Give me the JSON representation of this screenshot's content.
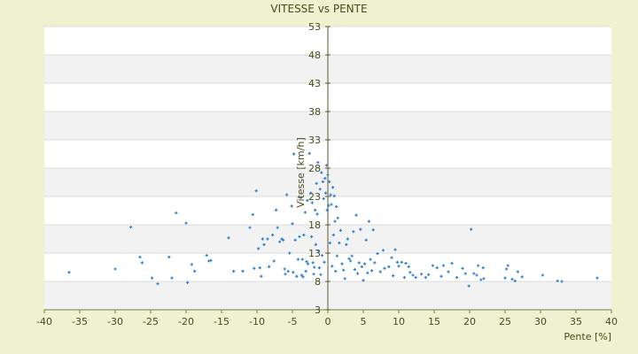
{
  "chart_data": {
    "type": "scatter",
    "title": "VITESSE vs PENTE",
    "xlabel": "Pente [%]",
    "ylabel": "Vitesse [km/h]",
    "xlim": [
      -40,
      40
    ],
    "ylim": [
      3,
      53
    ],
    "xticks": [
      "-40",
      "-35",
      "-30",
      "-25",
      "-20",
      "-15",
      "-10",
      "-5",
      "0",
      "5",
      "10",
      "15",
      "20",
      "25",
      "30",
      "35",
      "40"
    ],
    "yticks": [
      "3",
      "8",
      "13",
      "18",
      "23",
      "28",
      "33",
      "38",
      "43",
      "48",
      "53"
    ],
    "grid": "horizontal bands",
    "legend": "none",
    "marker_color": "#2a7fd4",
    "series": [
      {
        "points": [
          [
            -36.5,
            9.6
          ],
          [
            -30,
            10.2
          ],
          [
            -27.8,
            17.6
          ],
          [
            -26.5,
            12.3
          ],
          [
            -26.2,
            11.3
          ],
          [
            -24.8,
            8.6
          ],
          [
            -24,
            7.6
          ],
          [
            -22.4,
            12.3
          ],
          [
            -22,
            8.6
          ],
          [
            -21.4,
            20.1
          ],
          [
            -20,
            18.3
          ],
          [
            -19.8,
            7.8
          ],
          [
            -19.2,
            11
          ],
          [
            -18.8,
            9.8
          ],
          [
            -17.1,
            12.6
          ],
          [
            -16.8,
            11.6
          ],
          [
            -16.5,
            11.7
          ],
          [
            -14,
            15.7
          ],
          [
            -13.3,
            9.8
          ],
          [
            -12,
            9.8
          ],
          [
            -11,
            17.5
          ],
          [
            -10.6,
            19.8
          ],
          [
            -10.4,
            10.3
          ],
          [
            -10.1,
            24
          ],
          [
            -9.8,
            13.8
          ],
          [
            -9.6,
            10.4
          ],
          [
            -9.4,
            8.9
          ],
          [
            -9.2,
            15.5
          ],
          [
            -9,
            14.5
          ],
          [
            -8.5,
            15.5
          ],
          [
            -8.3,
            10.6
          ],
          [
            -7.8,
            16.2
          ],
          [
            -7.6,
            11.6
          ],
          [
            -7.3,
            20.6
          ],
          [
            -7.1,
            17.5
          ],
          [
            -6.8,
            15
          ],
          [
            -6.5,
            15.5
          ],
          [
            -6.3,
            15.3
          ],
          [
            -6.1,
            10.2
          ],
          [
            -6,
            9.3
          ],
          [
            -5.8,
            23.3
          ],
          [
            -5.6,
            9.8
          ],
          [
            -5.4,
            13
          ],
          [
            -5.1,
            21.3
          ],
          [
            -5,
            18.2
          ],
          [
            -4.9,
            9.6
          ],
          [
            -4.8,
            30.5
          ],
          [
            -4.6,
            15.3
          ],
          [
            -4.4,
            8.9
          ],
          [
            -4.2,
            11.9
          ],
          [
            -4,
            15.9
          ],
          [
            -3.8,
            22.8
          ],
          [
            -3.7,
            9.1
          ],
          [
            -3.6,
            11.9
          ],
          [
            -3.5,
            8.8
          ],
          [
            -3.4,
            16.2
          ],
          [
            -3.2,
            20.2
          ],
          [
            -3.1,
            9.8
          ],
          [
            -3,
            11.5
          ],
          [
            -2.9,
            22.3
          ],
          [
            -2.8,
            11.1
          ],
          [
            -2.6,
            30.6
          ],
          [
            -2.4,
            23.6
          ],
          [
            -2.3,
            15.9
          ],
          [
            -2.2,
            21.9
          ],
          [
            -2.1,
            11.3
          ],
          [
            -2,
            9.3
          ],
          [
            -1.9,
            10.5
          ],
          [
            -1.8,
            20.6
          ],
          [
            -1.7,
            14.5
          ],
          [
            -1.6,
            25.3
          ],
          [
            -1.5,
            19.9
          ],
          [
            -1.4,
            29
          ],
          [
            -1.3,
            13.4
          ],
          [
            -1.2,
            10.4
          ],
          [
            -1.1,
            24.3
          ],
          [
            -1,
            9.2
          ],
          [
            -0.9,
            27.2
          ],
          [
            -0.8,
            12.6
          ],
          [
            -0.7,
            25.6
          ],
          [
            -0.6,
            22.6
          ],
          [
            -0.5,
            11.4
          ],
          [
            -0.4,
            26.2
          ],
          [
            -0.3,
            23.6
          ],
          [
            -0.2,
            28.5
          ],
          [
            -0.1,
            20.6
          ],
          [
            0,
            26.8
          ],
          [
            0.1,
            21.4
          ],
          [
            0.2,
            25.6
          ],
          [
            0.3,
            14.8
          ],
          [
            0.4,
            23.3
          ],
          [
            0.5,
            21.6
          ],
          [
            0.6,
            10.7
          ],
          [
            0.7,
            24.6
          ],
          [
            0.8,
            16.2
          ],
          [
            0.9,
            23.1
          ],
          [
            1,
            18.6
          ],
          [
            1.1,
            9.8
          ],
          [
            1.2,
            21.2
          ],
          [
            1.3,
            12.5
          ],
          [
            1.4,
            19.2
          ],
          [
            1.6,
            14.8
          ],
          [
            1.8,
            17
          ],
          [
            2,
            11.1
          ],
          [
            2.2,
            10
          ],
          [
            2.4,
            8.5
          ],
          [
            2.6,
            14.5
          ],
          [
            2.8,
            15.5
          ],
          [
            3,
            12
          ],
          [
            3.2,
            11.6
          ],
          [
            3.4,
            12.5
          ],
          [
            3.6,
            16.8
          ],
          [
            3.8,
            10.1
          ],
          [
            4,
            19.7
          ],
          [
            4.2,
            9.4
          ],
          [
            4.4,
            11.3
          ],
          [
            4.6,
            17.2
          ],
          [
            4.8,
            10.6
          ],
          [
            5,
            8.2
          ],
          [
            5.2,
            11.1
          ],
          [
            5.4,
            15.3
          ],
          [
            5.6,
            9.5
          ],
          [
            5.8,
            18.6
          ],
          [
            6,
            11.9
          ],
          [
            6.2,
            9.9
          ],
          [
            6.4,
            17.1
          ],
          [
            6.6,
            11.3
          ],
          [
            7,
            12.9
          ],
          [
            7.4,
            9.7
          ],
          [
            7.8,
            13.5
          ],
          [
            8,
            10.3
          ],
          [
            8.6,
            10.6
          ],
          [
            9,
            12.2
          ],
          [
            9.2,
            9
          ],
          [
            9.5,
            13.6
          ],
          [
            9.8,
            11.4
          ],
          [
            10,
            10.7
          ],
          [
            10.4,
            11.4
          ],
          [
            10.8,
            8.7
          ],
          [
            11,
            11.2
          ],
          [
            11.4,
            10.6
          ],
          [
            11.6,
            9.6
          ],
          [
            12,
            9.1
          ],
          [
            12.4,
            8.7
          ],
          [
            13.2,
            9.3
          ],
          [
            13.8,
            8.7
          ],
          [
            14.2,
            9.2
          ],
          [
            14.8,
            10.8
          ],
          [
            15.4,
            10.4
          ],
          [
            16,
            8.9
          ],
          [
            16.3,
            10.8
          ],
          [
            17,
            9.7
          ],
          [
            17.5,
            11.2
          ],
          [
            18.2,
            8.7
          ],
          [
            19,
            10.3
          ],
          [
            19.4,
            9.4
          ],
          [
            19.9,
            7.2
          ],
          [
            20.2,
            17.2
          ],
          [
            20.6,
            9.4
          ],
          [
            21,
            9.1
          ],
          [
            21.2,
            10.8
          ],
          [
            21.6,
            8.3
          ],
          [
            21.9,
            10.4
          ],
          [
            22,
            8.5
          ],
          [
            25,
            8.6
          ],
          [
            25.2,
            10.2
          ],
          [
            25.4,
            10.8
          ],
          [
            26,
            8.4
          ],
          [
            26.4,
            8.1
          ],
          [
            26.8,
            9.7
          ],
          [
            27.4,
            8.8
          ],
          [
            30.3,
            9.1
          ],
          [
            32.4,
            8.1
          ],
          [
            33,
            8
          ],
          [
            38,
            8.6
          ]
        ]
      }
    ]
  }
}
